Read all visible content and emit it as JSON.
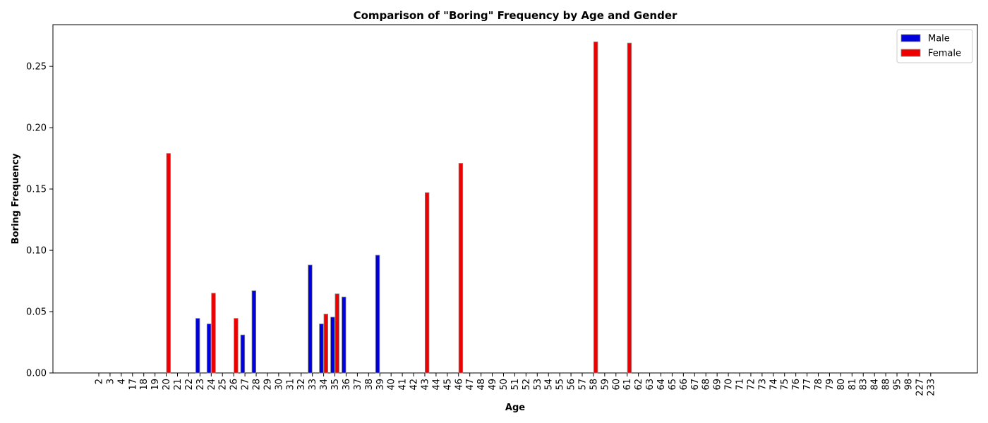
{
  "chart_data": {
    "type": "bar",
    "title": "Comparison of \"Boring\" Frequency by Age and Gender",
    "xlabel": "Age",
    "ylabel": "Boring Frequency",
    "ylim": [
      0,
      0.284
    ],
    "yticks": [
      "0.00",
      "0.05",
      "0.10",
      "0.15",
      "0.20",
      "0.25"
    ],
    "ytick_values": [
      0,
      0.05,
      0.1,
      0.15,
      0.2,
      0.25
    ],
    "grid": false,
    "legend_position": "top-right",
    "categories": [
      "2",
      "3",
      "4",
      "17",
      "18",
      "19",
      "20",
      "21",
      "22",
      "23",
      "24",
      "25",
      "26",
      "27",
      "28",
      "29",
      "30",
      "31",
      "32",
      "33",
      "34",
      "35",
      "36",
      "37",
      "38",
      "39",
      "40",
      "41",
      "42",
      "43",
      "44",
      "45",
      "46",
      "47",
      "48",
      "49",
      "50",
      "51",
      "52",
      "53",
      "54",
      "55",
      "56",
      "57",
      "58",
      "59",
      "60",
      "61",
      "62",
      "63",
      "64",
      "65",
      "66",
      "67",
      "68",
      "69",
      "70",
      "71",
      "72",
      "73",
      "74",
      "75",
      "76",
      "77",
      "78",
      "79",
      "80",
      "81",
      "83",
      "84",
      "88",
      "95",
      "98",
      "227",
      "233"
    ],
    "series": [
      {
        "name": "Male",
        "color": "#0000dd",
        "values": [
          0,
          0,
          0,
          0,
          0,
          0,
          0,
          0,
          0,
          0.0445,
          0.04,
          0,
          0,
          0.031,
          0.067,
          0,
          0,
          0,
          0,
          0.088,
          0.04,
          0.0455,
          0.062,
          0,
          0,
          0.096,
          0,
          0,
          0,
          0,
          0,
          0,
          0,
          0,
          0,
          0,
          0,
          0,
          0,
          0,
          0,
          0,
          0,
          0,
          0,
          0,
          0,
          0,
          0,
          0,
          0,
          0,
          0,
          0,
          0,
          0,
          0,
          0,
          0,
          0,
          0,
          0,
          0,
          0,
          0,
          0,
          0,
          0,
          0,
          0,
          0,
          0,
          0,
          0,
          0
        ]
      },
      {
        "name": "Female",
        "color": "#ee0000",
        "values": [
          0,
          0,
          0,
          0,
          0,
          0,
          0.179,
          0,
          0,
          0,
          0.065,
          0,
          0.0445,
          0,
          0,
          0,
          0,
          0,
          0,
          0,
          0.048,
          0.0645,
          0,
          0,
          0,
          0,
          0,
          0,
          0,
          0.147,
          0,
          0,
          0.171,
          0,
          0,
          0,
          0,
          0,
          0,
          0,
          0,
          0,
          0,
          0,
          0.27,
          0,
          0,
          0.269,
          0,
          0,
          0,
          0,
          0,
          0,
          0,
          0,
          0,
          0,
          0,
          0,
          0,
          0,
          0,
          0,
          0,
          0,
          0,
          0,
          0,
          0,
          0,
          0,
          0,
          0,
          0
        ]
      }
    ]
  }
}
